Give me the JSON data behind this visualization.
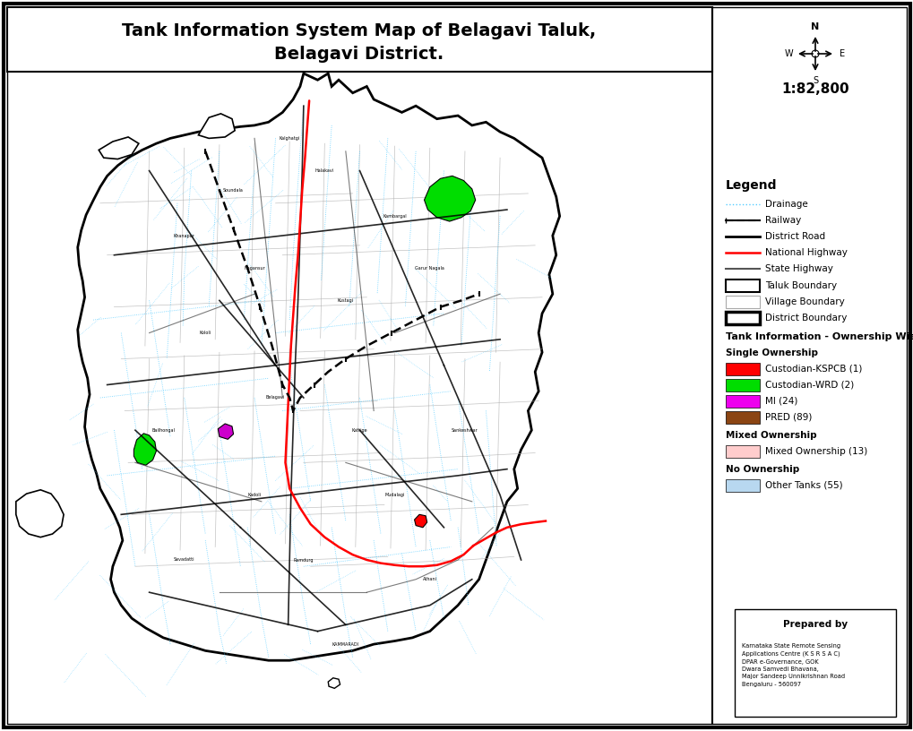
{
  "title_line1": "Tank Information System Map of Belagavi Taluk,",
  "title_line2": "Belagavi District.",
  "scale": "1:82,800",
  "bg_color": "#ffffff",
  "map_bg": "#ffffff",
  "legend_title": "Legend",
  "legend_items_lines": [
    {
      "label": "Drainage",
      "color": "#00cfff",
      "linestyle": "dotted",
      "linewidth": 1.2
    },
    {
      "label": "Railway",
      "color": "#000000",
      "linestyle": "railway",
      "linewidth": 1.2
    },
    {
      "label": "District Road",
      "color": "#000000",
      "linestyle": "solid",
      "linewidth": 2.0
    },
    {
      "label": "National Highway",
      "color": "#ff0000",
      "linestyle": "solid",
      "linewidth": 1.8
    },
    {
      "label": "State Highway",
      "color": "#555555",
      "linestyle": "solid",
      "linewidth": 1.8
    }
  ],
  "legend_items_boxes": [
    {
      "label": "Taluk Boundary",
      "facecolor": "#ffffff",
      "edgecolor": "#000000",
      "lw": 1.5
    },
    {
      "label": "Village Boundary",
      "facecolor": "#ffffff",
      "edgecolor": "#999999",
      "lw": 0.8
    },
    {
      "label": "District Boundary",
      "facecolor": "#ffffff",
      "edgecolor": "#000000",
      "lw": 2.5
    }
  ],
  "legend_section2_title": "Tank Information - Ownership Wise",
  "legend_section2_sub1": "Single Ownership",
  "legend_section2_items": [
    {
      "label": "Custodian-KSPCB (1)",
      "color": "#ff0000"
    },
    {
      "label": "Custodian-WRD (2)",
      "color": "#00ee00"
    },
    {
      "label": "MI (24)",
      "color": "#ee00ee"
    },
    {
      "label": "PRED (89)",
      "color": "#8B4513"
    }
  ],
  "legend_section3_title": "Mixed Ownership",
  "legend_section3_items": [
    {
      "label": "Mixed Ownership (13)",
      "color": "#ffcccc"
    }
  ],
  "legend_section4_title": "No Ownership",
  "legend_section4_items": [
    {
      "label": "Other Tanks (55)",
      "color": "#b8d8f0"
    }
  ],
  "prepared_by_title": "Prepared by",
  "prepared_by_text": "Karnataka State Remote Sensing\nApplications Centre (K S R S A C)\nDPAR e-Governance, GOK\nDwara Samvedi Bhavana,\nMajor Sandeep Unnikrishnan Road\nBengaluru - 560097"
}
